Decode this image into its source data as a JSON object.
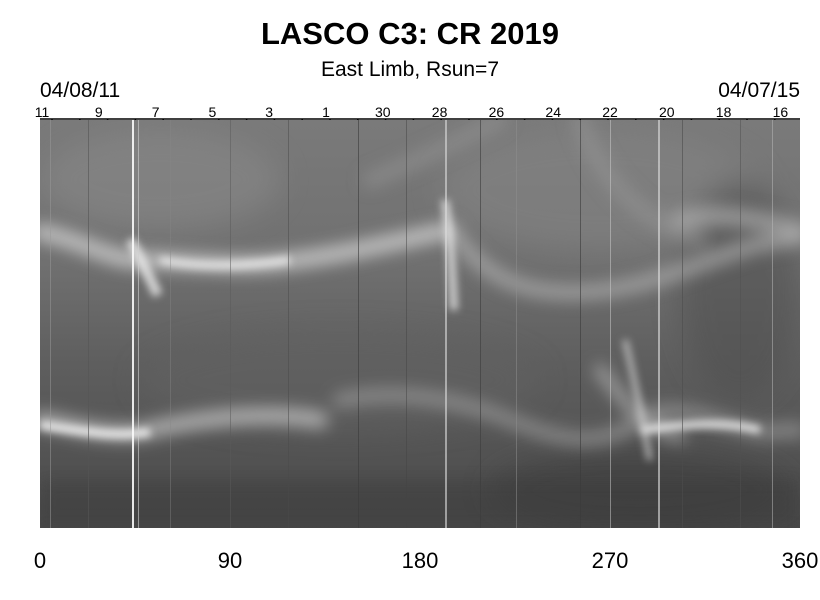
{
  "figure": {
    "title": "LASCO C3: CR 2019",
    "subtitle": "East Limb, Rsun=7",
    "date_left": "04/08/11",
    "date_right": "04/07/15",
    "date_ticks": [
      "11",
      "9",
      "7",
      "5",
      "3",
      "1",
      "30",
      "28",
      "26",
      "24",
      "22",
      "20",
      "18",
      "16"
    ],
    "x_ticks": [
      "0",
      "90",
      "180",
      "270",
      "360"
    ],
    "x_range": [
      0,
      360
    ],
    "colormap": "grayscale"
  }
}
